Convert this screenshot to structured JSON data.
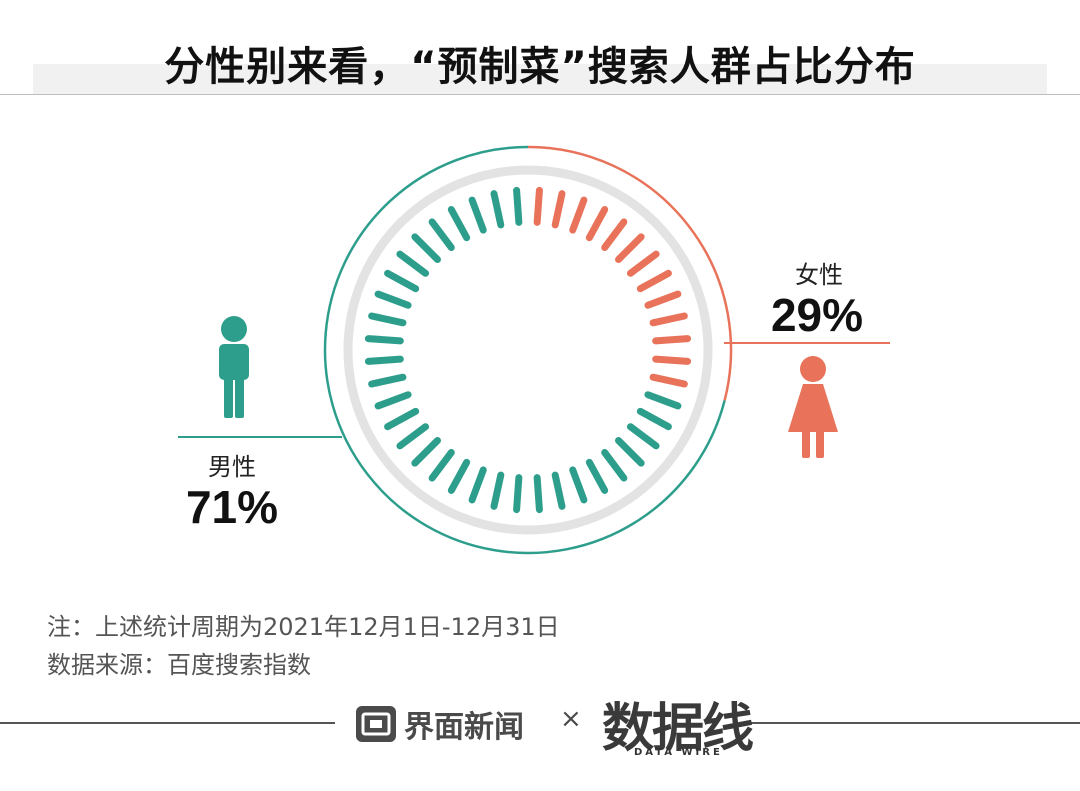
{
  "title": "分性别来看，“预制菜”搜索人群占比分布",
  "chart_data": {
    "type": "pie",
    "categories": [
      "男性",
      "女性"
    ],
    "values": [
      71,
      29
    ],
    "value_labels": [
      "71%",
      "29%"
    ],
    "colors": {
      "男性": "#2e9e8c",
      "女性": "#e8735a",
      "track": "#e3e3e3"
    }
  },
  "notes": {
    "period": "注：上述统计周期为2021年12月1日-12月31日",
    "source": "数据来源：百度搜索指数"
  },
  "footer": {
    "brand": "界面新闻",
    "times": "×",
    "partner_logo": "数据线",
    "partner_sub": "DATA WIRE"
  },
  "icons": {
    "male": "male-person-icon",
    "female": "female-person-icon",
    "brand": "jiemian-logo-icon"
  }
}
